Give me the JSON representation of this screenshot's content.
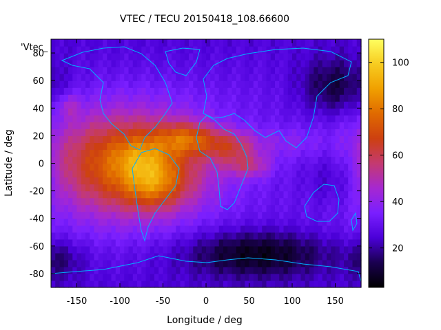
{
  "chart_data": {
    "type": "heatmap",
    "title": "VTEC / TECU 20150418_108.66600",
    "xlabel": "Longitude / deg",
    "ylabel": "Latitude / deg",
    "series_label": "'Vtec_",
    "xlim": [
      -180,
      180
    ],
    "ylim": [
      -90,
      90
    ],
    "x_ticks": [
      -150,
      -100,
      -50,
      0,
      50,
      100,
      150
    ],
    "y_ticks": [
      80,
      60,
      40,
      20,
      0,
      -20,
      -40,
      -60,
      -80
    ],
    "colorbar": {
      "range": [
        3,
        110
      ],
      "ticks": [
        20,
        40,
        60,
        80,
        100
      ],
      "colors": [
        "#000000",
        "#1a0050",
        "#4b00d8",
        "#7a1fff",
        "#a628d0",
        "#c43a70",
        "#cd4010",
        "#e06a00",
        "#f0a000",
        "#f7cc20",
        "#ffff60"
      ]
    },
    "grid": false,
    "blobs": [
      {
        "lon": -90,
        "lat": 0,
        "slon": 65,
        "slat": 26,
        "amp": 48
      },
      {
        "lon": -60,
        "lat": -15,
        "slon": 25,
        "slat": 12,
        "amp": 22
      },
      {
        "lon": -20,
        "lat": 18,
        "slon": 25,
        "slat": 8,
        "amp": 28
      },
      {
        "lon": -75,
        "lat": 5,
        "slon": 20,
        "slat": 10,
        "amp": 12
      },
      {
        "lon": 30,
        "lat": 12,
        "slon": 20,
        "slat": 8,
        "amp": 22
      },
      {
        "lon": 50,
        "lat": -2,
        "slon": 18,
        "slat": 6,
        "amp": 18
      },
      {
        "lon": 90,
        "lat": 15,
        "slon": 30,
        "slat": 8,
        "amp": 8
      },
      {
        "lon": -160,
        "lat": 42,
        "slon": 10,
        "slat": 6,
        "amp": 12
      }
    ],
    "dark_regions": [
      {
        "lon": 60,
        "lat": -65,
        "slon": 60,
        "slat": 12,
        "amp": -22
      },
      {
        "lon": 150,
        "lat": 55,
        "slon": 30,
        "slat": 15,
        "amp": -18
      },
      {
        "lon": 150,
        "lat": -10,
        "slon": 25,
        "slat": 15,
        "amp": -12
      },
      {
        "lon": -170,
        "lat": -70,
        "slon": 20,
        "slat": 10,
        "amp": -10
      }
    ]
  }
}
